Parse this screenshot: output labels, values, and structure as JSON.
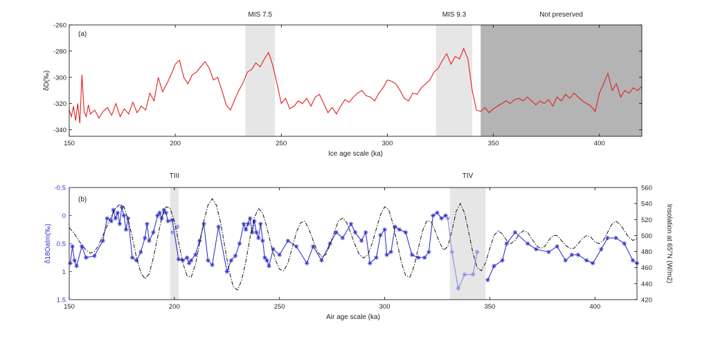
{
  "colors": {
    "dd_line": "#e0201c",
    "d18o_line": "#3333cc",
    "d18o_light": "#8888ee",
    "insolation_line": "#111111",
    "band_light": "#e6e6e6",
    "band_dark": "#b4b4b4",
    "axis": "#000000"
  },
  "chart_data": [
    {
      "type": "line",
      "panel_label": "(a)",
      "xlabel": "Ice age scale (ka)",
      "ylabel": "δD(‰)",
      "xlim": [
        150,
        420
      ],
      "ylim": [
        -345,
        -260
      ],
      "y_reversed": false,
      "xticks": [
        150,
        200,
        250,
        300,
        350,
        400
      ],
      "yticks": [
        -260,
        -280,
        -300,
        -320,
        -340
      ],
      "grid": false,
      "bands": [
        {
          "label": "MIS 7.5",
          "x0": 233,
          "x1": 247,
          "shade": "light"
        },
        {
          "label": "MIS 9.3",
          "x0": 323,
          "x1": 340,
          "shade": "light"
        },
        {
          "label": "Not preserved",
          "x0": 344,
          "x1": 420,
          "shade": "dark"
        }
      ],
      "series": [
        {
          "x": [
            150,
            151,
            152,
            153,
            154,
            155,
            156,
            157,
            158,
            159,
            160,
            162,
            164,
            166,
            168,
            170,
            172,
            174,
            176,
            178,
            180,
            182,
            184,
            186,
            188,
            190,
            192,
            194,
            196,
            198,
            200,
            202,
            204,
            206,
            208,
            210,
            212,
            214,
            216,
            218,
            220,
            222,
            224,
            226,
            228,
            230,
            232,
            234,
            236,
            238,
            240,
            242,
            244,
            246,
            248,
            250,
            252,
            254,
            256,
            258,
            260,
            262,
            264,
            266,
            268,
            270,
            272,
            274,
            276,
            278,
            280,
            282,
            284,
            286,
            288,
            290,
            292,
            294,
            296,
            298,
            300,
            302,
            304,
            306,
            308,
            310,
            312,
            314,
            316,
            318,
            320,
            322,
            324,
            326,
            328,
            330,
            332,
            334,
            336,
            338,
            340,
            342,
            344,
            346,
            348,
            350,
            352,
            354,
            356,
            358,
            360,
            362,
            364,
            366,
            368,
            370,
            372,
            374,
            376,
            378,
            380,
            382,
            384,
            386,
            388,
            390,
            392,
            394,
            396,
            398,
            400,
            402,
            404,
            406,
            408,
            410,
            412,
            414,
            416,
            418,
            420
          ],
          "values": [
            -325,
            -330,
            -322,
            -333,
            -320,
            -335,
            -298,
            -326,
            -330,
            -321,
            -328,
            -325,
            -331,
            -326,
            -323,
            -329,
            -320,
            -330,
            -324,
            -328,
            -319,
            -327,
            -322,
            -325,
            -312,
            -318,
            -300,
            -311,
            -305,
            -298,
            -290,
            -287,
            -300,
            -305,
            -298,
            -296,
            -292,
            -288,
            -293,
            -302,
            -300,
            -310,
            -321,
            -325,
            -317,
            -310,
            -304,
            -296,
            -294,
            -289,
            -292,
            -286,
            -281,
            -291,
            -305,
            -320,
            -316,
            -324,
            -322,
            -318,
            -320,
            -316,
            -322,
            -315,
            -313,
            -320,
            -327,
            -323,
            -328,
            -322,
            -317,
            -319,
            -315,
            -312,
            -310,
            -314,
            -315,
            -318,
            -312,
            -308,
            -302,
            -303,
            -305,
            -310,
            -316,
            -318,
            -312,
            -313,
            -308,
            -305,
            -302,
            -296,
            -293,
            -287,
            -282,
            -290,
            -284,
            -286,
            -278,
            -286,
            -310,
            -325,
            -326,
            -323,
            -327,
            -324,
            -322,
            -320,
            -318,
            -320,
            -317,
            -316,
            -318,
            -315,
            -318,
            -321,
            -318,
            -320,
            -317,
            -322,
            -315,
            -318,
            -313,
            -316,
            -312,
            -315,
            -318,
            -320,
            -322,
            -326,
            -312,
            -305,
            -297,
            -310,
            -305,
            -315,
            -310,
            -312,
            -308,
            -310,
            -307
          ]
        }
      ]
    },
    {
      "type": "line",
      "panel_label": "(b)",
      "xlabel": "Air age scale (ka)",
      "ylabel": "δ18Oatm(‰)",
      "y2label": "Insolation at 65°N (W/m2)",
      "xlim": [
        150,
        420
      ],
      "ylim": [
        1.5,
        -0.5
      ],
      "y_reversed": true,
      "y2lim": [
        420,
        560
      ],
      "xticks": [
        150,
        200,
        250,
        300,
        350,
        400
      ],
      "yticks": [
        -0.5,
        0,
        0.5,
        1,
        1.5
      ],
      "ytick_labels": [
        "-0.5",
        "0",
        "0.5",
        "1",
        "1.5"
      ],
      "y2ticks": [
        420,
        440,
        460,
        480,
        500,
        520,
        540,
        560
      ],
      "grid": false,
      "bands": [
        {
          "label": "TIII",
          "x0": 198,
          "x1": 202,
          "shade": "light"
        },
        {
          "label": "TIV",
          "x0": 331,
          "x1": 348,
          "shade": "light"
        }
      ],
      "series": [
        {
          "axis": "left",
          "marker": "star",
          "x": [
            150.5,
            151.5,
            152.5,
            153.5,
            156,
            158,
            162,
            166,
            168,
            170,
            171,
            172,
            173,
            174,
            175,
            176,
            177,
            178,
            180,
            182,
            184,
            186,
            187,
            188,
            190,
            192,
            193,
            194,
            195,
            196,
            197,
            199,
            202,
            204,
            206,
            207,
            208,
            210,
            212,
            214,
            216,
            218,
            221,
            225,
            227,
            229,
            231,
            233,
            234,
            235,
            236,
            237,
            238,
            239,
            240,
            241,
            242,
            243,
            244,
            245,
            247,
            250,
            254,
            258,
            263,
            266,
            270,
            274,
            277,
            280,
            284,
            286,
            289,
            291,
            293,
            296,
            298,
            300,
            301,
            303,
            305,
            307,
            310,
            313,
            316,
            319,
            321,
            323,
            325,
            327,
            329
          ],
          "values": [
            0.85,
            0.55,
            0.8,
            0.9,
            0.55,
            0.75,
            0.72,
            0.45,
            0.05,
            0.1,
            -0.1,
            0.05,
            -0.05,
            0.15,
            -0.15,
            0.0,
            0.25,
            0.05,
            0.75,
            0.8,
            0.65,
            0.4,
            0.15,
            0.45,
            0.3,
            0.0,
            -0.05,
            0.05,
            -0.1,
            -0.05,
            0.1,
            0.08,
            0.78,
            0.8,
            0.75,
            0.85,
            0.8,
            0.7,
            0.45,
            0.15,
            0.8,
            0.88,
            0.2,
            1.0,
            0.8,
            0.72,
            0.5,
            0.15,
            0.25,
            0.15,
            0.05,
            0.3,
            0.1,
            0.3,
            0.4,
            0.15,
            0.45,
            0.75,
            0.8,
            0.9,
            0.6,
            0.7,
            0.45,
            0.55,
            0.85,
            0.55,
            0.8,
            0.5,
            0.3,
            0.4,
            0.15,
            0.3,
            0.45,
            0.3,
            0.85,
            0.75,
            0.35,
            0.25,
            0.7,
            0.65,
            0.2,
            0.25,
            0.3,
            0.7,
            0.75,
            0.75,
            0.65,
            0.0,
            -0.05,
            0.05,
            0.0
          ]
        },
        {
          "axis": "left",
          "marker": "star",
          "light": true,
          "x": [
            199,
            201.5
          ],
          "values": [
            0.3,
            0.2
          ]
        },
        {
          "axis": "left",
          "marker": "star",
          "light": true,
          "x": [
            330,
            332,
            335,
            338,
            342,
            344
          ],
          "values": [
            0.05,
            0.65,
            1.3,
            1.05,
            1.05,
            0.65
          ]
        },
        {
          "axis": "left",
          "marker": "star",
          "x": [
            349,
            352,
            356,
            358,
            362,
            368,
            372,
            378,
            382,
            386,
            389,
            392,
            396,
            399,
            403,
            406,
            410,
            414,
            418,
            420
          ],
          "values": [
            1.15,
            0.9,
            0.8,
            0.5,
            0.3,
            0.5,
            0.6,
            0.65,
            0.55,
            0.8,
            0.7,
            0.7,
            0.8,
            0.85,
            0.6,
            0.4,
            0.4,
            0.5,
            0.8,
            0.85
          ]
        },
        {
          "axis": "right",
          "dashed": true,
          "x": [
            150,
            152,
            154,
            156,
            158,
            160,
            162,
            164,
            166,
            168,
            170,
            172,
            174,
            176,
            178,
            180,
            182,
            184,
            186,
            188,
            190,
            192,
            194,
            196,
            198,
            200,
            202,
            204,
            206,
            208,
            210,
            212,
            214,
            216,
            218,
            220,
            222,
            224,
            226,
            228,
            230,
            232,
            234,
            236,
            238,
            240,
            242,
            244,
            246,
            248,
            250,
            252,
            254,
            256,
            258,
            260,
            262,
            264,
            266,
            268,
            270,
            272,
            274,
            276,
            278,
            280,
            282,
            284,
            286,
            288,
            290,
            292,
            294,
            296,
            298,
            300,
            302,
            304,
            306,
            308,
            310,
            312,
            314,
            316,
            318,
            320,
            322,
            324,
            326,
            328,
            330,
            332,
            334,
            336,
            338,
            340,
            342,
            344,
            346,
            348,
            350,
            352,
            354,
            356,
            358,
            360,
            362,
            364,
            366,
            368,
            370,
            372,
            374,
            376,
            378,
            380,
            382,
            384,
            386,
            388,
            390,
            392,
            394,
            396,
            398,
            400,
            402,
            404,
            406,
            408,
            410,
            412,
            414,
            416,
            418,
            420
          ],
          "values": [
            510,
            504,
            496,
            488,
            482,
            478,
            480,
            488,
            500,
            512,
            524,
            534,
            539,
            536,
            520,
            498,
            472,
            454,
            446,
            452,
            472,
            498,
            522,
            536,
            534,
            518,
            492,
            466,
            450,
            448,
            464,
            490,
            518,
            538,
            546,
            538,
            516,
            486,
            456,
            436,
            432,
            444,
            468,
            498,
            522,
            534,
            528,
            510,
            488,
            470,
            458,
            456,
            466,
            484,
            504,
            516,
            518,
            508,
            494,
            480,
            474,
            476,
            488,
            504,
            518,
            522,
            516,
            502,
            488,
            476,
            472,
            476,
            490,
            508,
            526,
            536,
            532,
            514,
            490,
            466,
            450,
            448,
            462,
            484,
            506,
            518,
            518,
            506,
            492,
            482,
            486,
            506,
            530,
            540,
            528,
            504,
            478,
            460,
            456,
            466,
            484,
            500,
            506,
            502,
            494,
            490,
            494,
            502,
            506,
            504,
            496,
            488,
            484,
            486,
            494,
            500,
            500,
            494,
            488,
            484,
            484,
            490,
            496,
            500,
            498,
            492,
            490,
            494,
            504,
            514,
            518,
            514,
            506,
            498,
            494,
            496
          ]
        }
      ]
    }
  ]
}
